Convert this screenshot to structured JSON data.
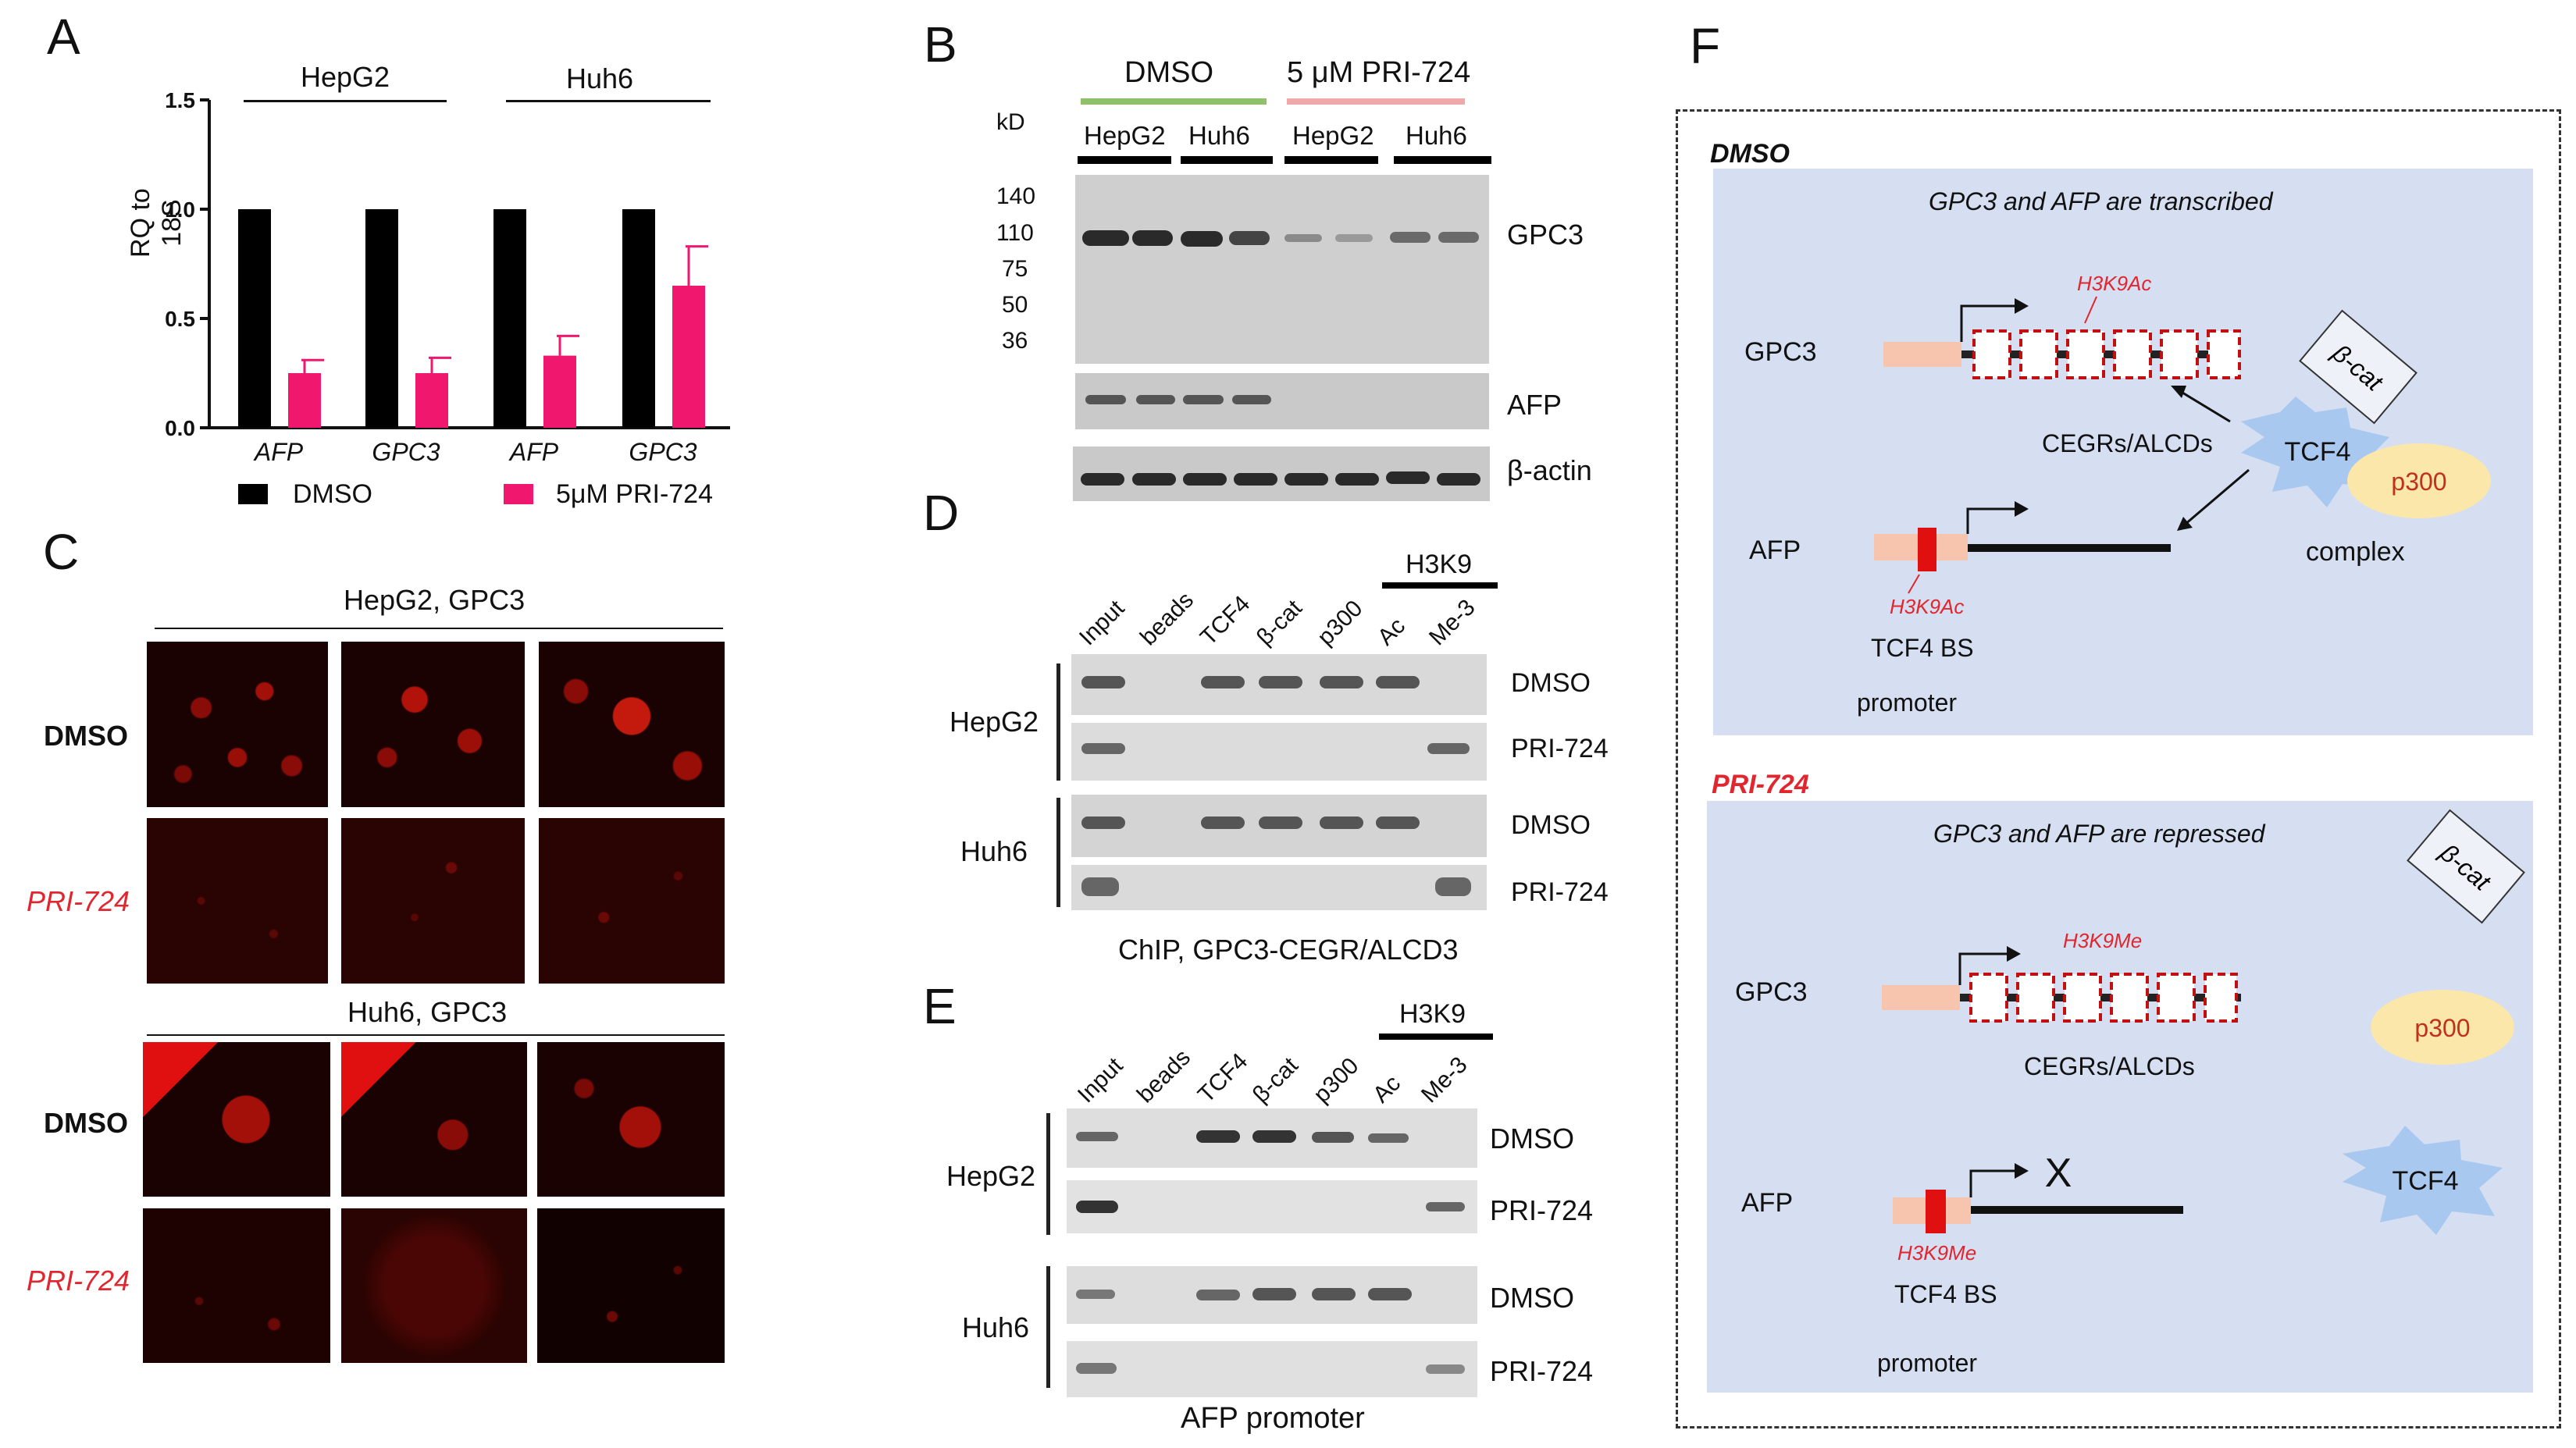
{
  "panels": {
    "A": "A",
    "B": "B",
    "C": "C",
    "D": "D",
    "E": "E",
    "F": "F"
  },
  "panelA": {
    "groups": [
      "HepG2",
      "Huh6"
    ],
    "ylabel": "RQ to\n18S",
    "ylabel_line1": "RQ to",
    "ylabel_line2": "18S",
    "legend": [
      "DMSO",
      "5μM PRI-724"
    ]
  },
  "chart_data": {
    "type": "bar",
    "categories": [
      "AFP",
      "GPC3",
      "AFP",
      "GPC3"
    ],
    "series": [
      {
        "name": "DMSO",
        "values": [
          1.0,
          1.0,
          1.0,
          1.0
        ],
        "color": "#000000"
      },
      {
        "name": "5μM PRI-724",
        "values": [
          0.25,
          0.25,
          0.33,
          0.65
        ],
        "errors": [
          0.06,
          0.07,
          0.09,
          0.18
        ],
        "color": "#f0186e"
      }
    ],
    "ylim": [
      0,
      1.5
    ],
    "yticks": [
      "0.0",
      "0.5",
      "1.0",
      "1.5"
    ],
    "ytick_values": [
      0,
      0.5,
      1.0,
      1.5
    ]
  },
  "panelB": {
    "treatments": [
      "DMSO",
      "5 μM PRI-724"
    ],
    "kd": "kD",
    "cells": [
      "HepG2",
      "Huh6",
      "HepG2",
      "Huh6"
    ],
    "markers": [
      "140",
      "110",
      "75",
      "50",
      "36"
    ],
    "blots": [
      "GPC3",
      "AFP",
      "β-actin"
    ]
  },
  "panelC": {
    "title1": "HepG2, GPC3",
    "title2": "Huh6, GPC3",
    "rows": [
      "DMSO",
      "PRI-724",
      "DMSO",
      "PRI-724"
    ]
  },
  "panelD": {
    "h3k9": "H3K9",
    "lanes": [
      "Input",
      "beads",
      "TCF4",
      "β-cat",
      "p300",
      "Ac",
      "Me-3"
    ],
    "cells": [
      "HepG2",
      "Huh6"
    ],
    "rows": [
      "DMSO",
      "PRI-724",
      "DMSO",
      "PRI-724"
    ],
    "caption": "ChIP, GPC3-CEGR/ALCD3"
  },
  "panelE": {
    "h3k9": "H3K9",
    "lanes": [
      "Input",
      "beads",
      "TCF4",
      "β-cat",
      "p300",
      "Ac",
      "Me-3"
    ],
    "cells": [
      "HepG2",
      "Huh6"
    ],
    "rows": [
      "DMSO",
      "PRI-724",
      "DMSO",
      "PRI-724"
    ],
    "caption": "AFP promoter"
  },
  "panelF": {
    "dmso": {
      "label": "DMSO",
      "subtitle": "GPC3 and AFP are transcribed",
      "gene1": "GPC3",
      "gene2": "AFP",
      "mark1": "H3K9Ac",
      "mark2": "H3K9Ac",
      "cegr": "CEGRs/ALCDs",
      "bcat": "β-cat",
      "tcf4": "TCF4",
      "p300": "p300",
      "complex": "complex",
      "tcf4bs": "TCF4 BS",
      "promoter": "promoter"
    },
    "pri": {
      "label": "PRI-724",
      "subtitle": "GPC3 and AFP are repressed",
      "gene1": "GPC3",
      "gene2": "AFP",
      "mark1": "H3K9Me",
      "mark2": "H3K9Me",
      "cegr": "CEGRs/ALCDs",
      "bcat": "β-cat",
      "p300": "p300",
      "tcf4": "TCF4",
      "x": "X",
      "tcf4bs": "TCF4 BS",
      "promoter": "promoter"
    }
  }
}
